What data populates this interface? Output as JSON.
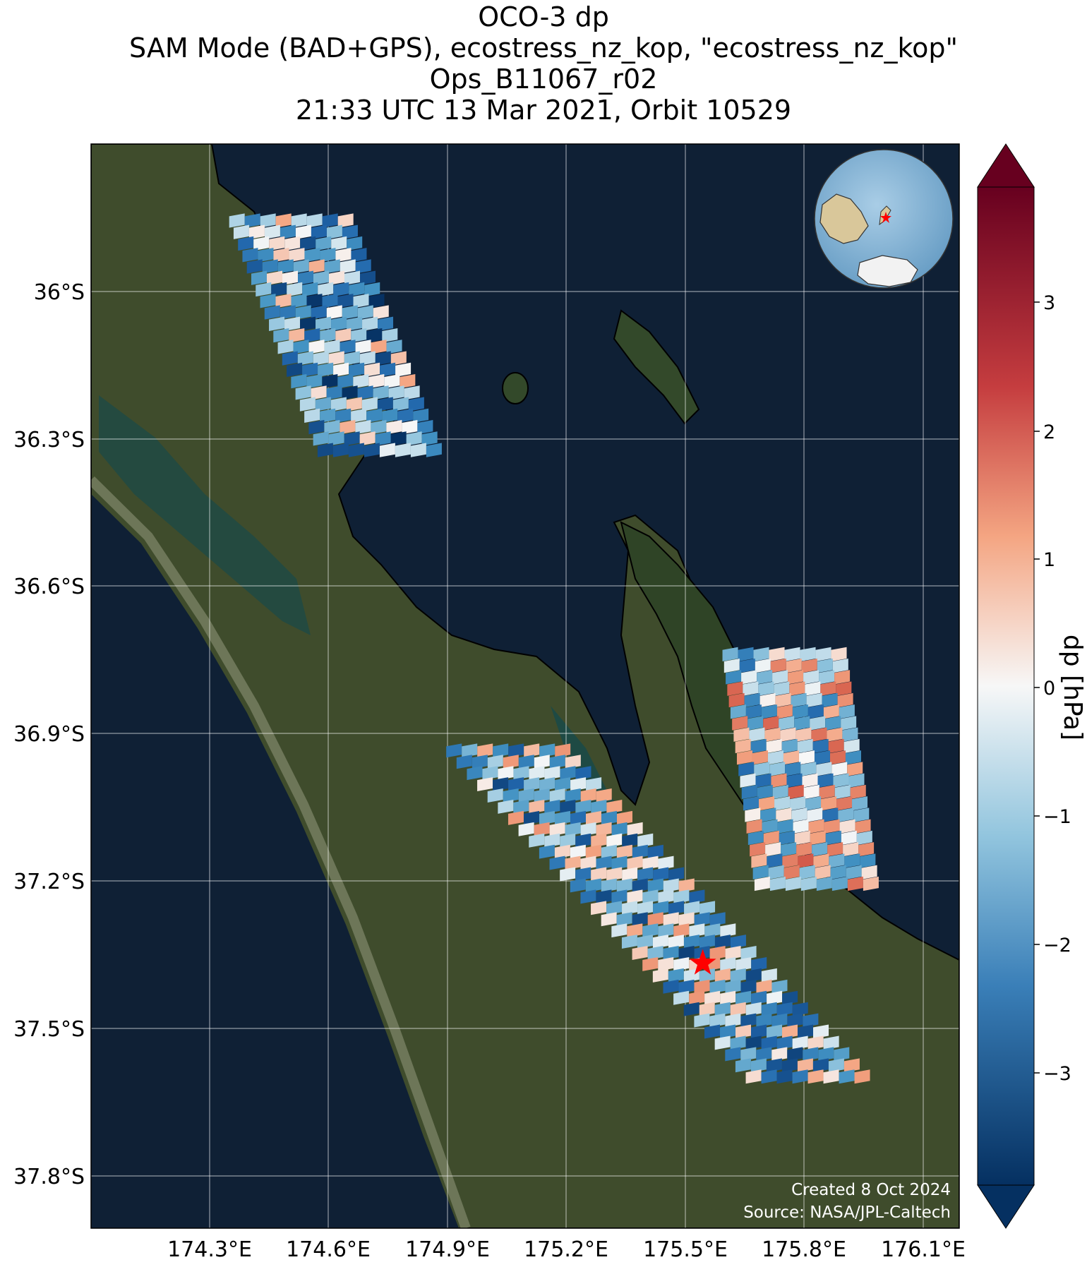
{
  "title": {
    "line1": "OCO-3 dp",
    "line2": "SAM Mode (BAD+GPS), ecostress_nz_kop, \"ecostress_nz_kop\"",
    "line3": "Ops_B11067_r02",
    "line4": "21:33 UTC 13 Mar 2021, Orbit 10529"
  },
  "map": {
    "lon_ticks": [
      "174.3°E",
      "174.6°E",
      "174.9°E",
      "175.2°E",
      "175.5°E",
      "175.8°E",
      "176.1°E"
    ],
    "lat_ticks": [
      "36°S",
      "36.3°S",
      "36.6°S",
      "36.9°S",
      "37.2°S",
      "37.5°S",
      "37.8°S"
    ],
    "target_marker": {
      "lon": 175.55,
      "lat": -37.4,
      "color": "#ff0000",
      "icon": "star-icon"
    },
    "credit_line1": "Created 8 Oct 2024",
    "credit_line2": "Source: NASA/JPL-Caltech",
    "colors": {
      "ocean": "#0f2035",
      "land": "#3d4a2a",
      "coastline": "#000000"
    }
  },
  "colorbar": {
    "label": "dp [hPa]",
    "ticks": [
      "3",
      "2",
      "1",
      "0",
      "−1",
      "−2",
      "−3"
    ],
    "colormap": "RdBu_r",
    "range": [
      -4,
      4
    ],
    "extend": "both",
    "colors": {
      "max": "#67001f",
      "high": "#d6604d",
      "mid": "#f7f7f7",
      "low": "#4393c3",
      "min": "#053061"
    }
  },
  "inset_globe": {
    "icon": "globe-icon",
    "marker_color": "#ff0000"
  },
  "chart_data": {
    "type": "heatmap",
    "title": "OCO-3 dp",
    "xlabel": "",
    "ylabel": "",
    "xlim": [
      174.0,
      176.2
    ],
    "ylim": [
      -37.95,
      -35.7
    ],
    "clim": [
      -4,
      4
    ],
    "swaths": [
      {
        "lon_range": [
          174.35,
          174.9
        ],
        "lat_range": [
          -36.35,
          -35.85
        ],
        "mean_dp": -1.5
      },
      {
        "lon_range": [
          174.9,
          176.0
        ],
        "lat_range": [
          -37.65,
          -36.95
        ],
        "mean_dp": -1.2
      },
      {
        "lon_range": [
          175.6,
          176.0
        ],
        "lat_range": [
          -37.25,
          -36.75
        ],
        "mean_dp": -0.4
      }
    ]
  }
}
